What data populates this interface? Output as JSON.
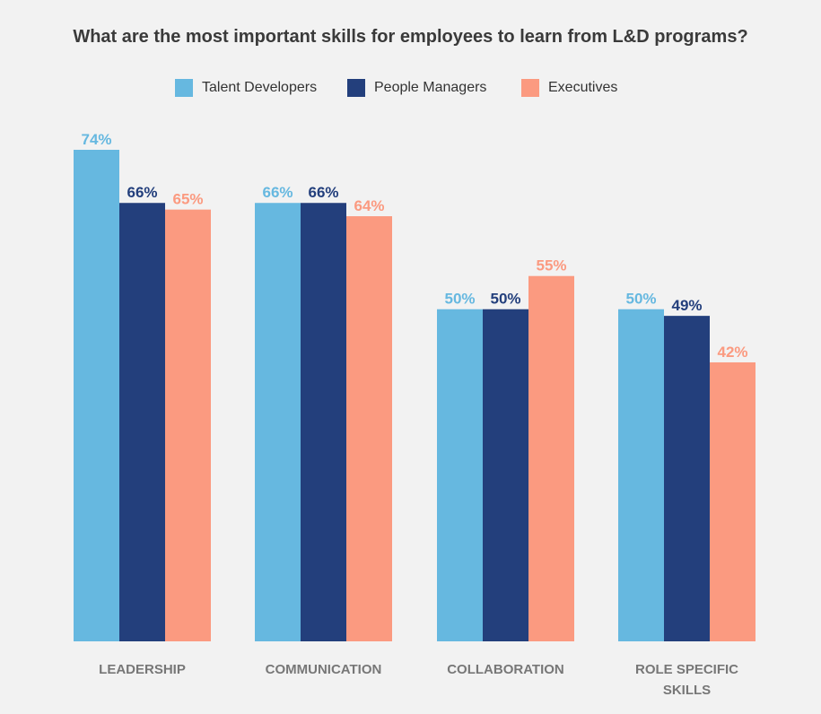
{
  "chart_data": {
    "type": "bar",
    "title": "What are the most important skills for employees to learn from L&D programs?",
    "categories": [
      "LEADERSHIP",
      "COMMUNICATION",
      "COLLABORATION",
      "ROLE SPECIFIC SKILLS"
    ],
    "category_lines": [
      [
        "LEADERSHIP"
      ],
      [
        "COMMUNICATION"
      ],
      [
        "COLLABORATION"
      ],
      [
        "ROLE SPECIFIC",
        "SKILLS"
      ]
    ],
    "series": [
      {
        "name": "Talent Developers",
        "color": "#66b8e0",
        "values": [
          74,
          66,
          50,
          50
        ]
      },
      {
        "name": "People Managers",
        "color": "#233f7c",
        "values": [
          66,
          66,
          50,
          49
        ]
      },
      {
        "name": "Executives",
        "color": "#fb9a80",
        "values": [
          65,
          64,
          55,
          42
        ]
      }
    ],
    "value_suffix": "%",
    "ylim": [
      0,
      74
    ],
    "grid": false,
    "legend_position": "top-center"
  }
}
